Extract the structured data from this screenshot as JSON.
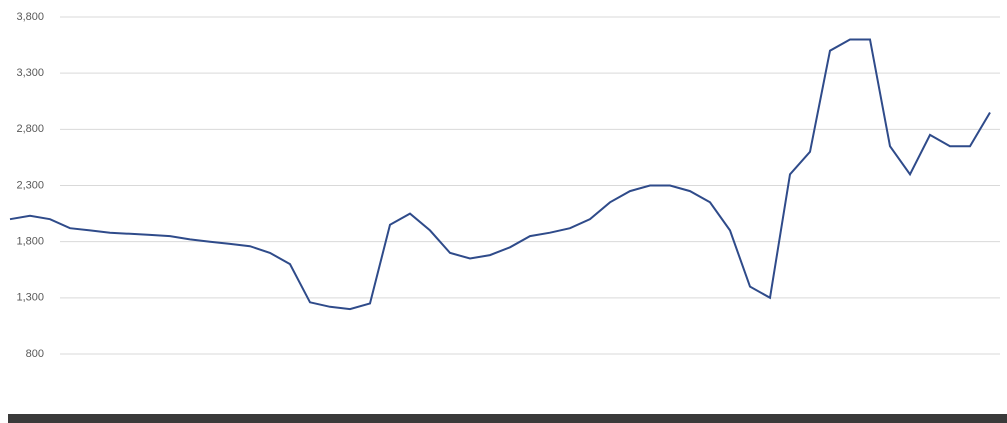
{
  "chart_data": {
    "type": "line",
    "series": [
      {
        "color": "#2f4b8a",
        "values": [
          2000,
          2030,
          2000,
          1920,
          1900,
          1880,
          1870,
          1860,
          1850,
          1820,
          1800,
          1780,
          1760,
          1700,
          1600,
          1260,
          1220,
          1200,
          1250,
          1950,
          2050,
          1900,
          1700,
          1650,
          1680,
          1750,
          1850,
          1880,
          1920,
          2000,
          2150,
          2250,
          2300,
          2300,
          2250,
          2150,
          1900,
          1400,
          1300,
          2400,
          2600,
          3500,
          3600,
          3600,
          2650,
          2400,
          2750,
          2650,
          2650,
          2950
        ]
      }
    ],
    "ylim": [
      800,
      3800
    ],
    "yticks": [
      800,
      {
        "value": 1300,
        "label": "1,300"
      },
      {
        "value": 1800,
        "label": "1,800"
      },
      {
        "value": 2300,
        "label": "2,300"
      },
      {
        "value": 2800,
        "label": "2,800"
      },
      {
        "value": 3300,
        "label": "3,300"
      },
      {
        "value": 3800,
        "label": "3,800"
      }
    ],
    "grid": true
  }
}
